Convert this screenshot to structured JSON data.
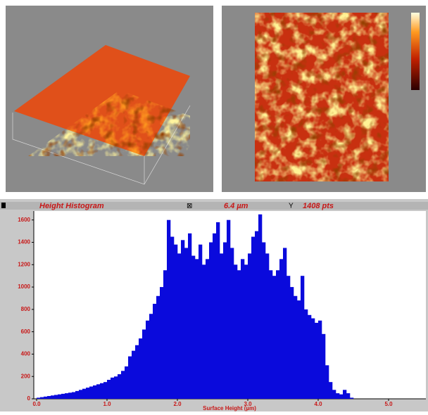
{
  "chart_data": {
    "type": "histogram",
    "title": "Height Histogram",
    "annotations": [
      "6.4 µm",
      "1408 pts"
    ],
    "x_label": "Surface Height (µm)",
    "color": "#0a0adc",
    "bins": [
      0,
      0.05,
      0.1,
      0.15,
      0.2,
      0.25,
      0.3,
      0.35,
      0.4,
      0.45,
      0.5,
      0.55,
      0.6,
      0.65,
      0.7,
      0.75,
      0.8,
      0.85,
      0.9,
      0.95,
      1,
      1.05,
      1.1,
      1.15,
      1.2,
      1.25,
      1.3,
      1.35,
      1.4,
      1.45,
      1.5,
      1.55,
      1.6,
      1.65,
      1.7,
      1.75,
      1.8,
      1.85,
      1.9,
      1.95,
      2,
      2.05,
      2.1,
      2.15,
      2.2,
      2.25,
      2.3,
      2.35,
      2.4,
      2.45,
      2.5,
      2.55,
      2.6,
      2.65,
      2.7,
      2.75,
      2.8,
      2.85,
      2.9,
      2.95,
      3,
      3.05,
      3.1,
      3.15,
      3.2,
      3.25,
      3.3,
      3.35,
      3.4,
      3.45,
      3.5,
      3.55,
      3.6,
      3.65,
      3.7,
      3.75,
      3.8,
      3.85,
      3.9,
      3.95,
      4,
      4.05,
      4.1,
      4.15,
      4.2,
      4.25,
      4.3,
      4.35,
      4.4,
      4.45,
      4.5
    ],
    "counts": [
      10,
      15,
      20,
      25,
      30,
      35,
      40,
      45,
      50,
      55,
      60,
      70,
      80,
      90,
      100,
      110,
      120,
      130,
      140,
      150,
      170,
      190,
      200,
      220,
      250,
      290,
      380,
      430,
      480,
      540,
      620,
      700,
      760,
      850,
      920,
      1000,
      1150,
      1600,
      1450,
      1380,
      1300,
      1420,
      1350,
      1480,
      1280,
      1250,
      1380,
      1200,
      1250,
      1400,
      1480,
      1580,
      1300,
      1400,
      1600,
      1350,
      1200,
      1150,
      1250,
      1200,
      1300,
      1450,
      1500,
      1650,
      1400,
      1300,
      1150,
      1100,
      1150,
      1250,
      1350,
      1100,
      1000,
      920,
      880,
      1100,
      800,
      750,
      720,
      680,
      700,
      580,
      300,
      150,
      80,
      50,
      40,
      80,
      50,
      10
    ],
    "xlim": [
      -0.04,
      5.53
    ],
    "ylim": [
      0,
      1680
    ],
    "xticks": [
      {
        "value": 0,
        "label": "0.0"
      },
      {
        "value": 1,
        "label": "1.0"
      },
      {
        "value": 2,
        "label": "2.0"
      },
      {
        "value": 3,
        "label": "3.0"
      },
      {
        "value": 4,
        "label": "4.0"
      },
      {
        "value": 5,
        "label": "5.0"
      }
    ],
    "yticks": [
      0,
      200,
      400,
      600,
      800,
      1000,
      1200,
      1400,
      1600
    ]
  }
}
